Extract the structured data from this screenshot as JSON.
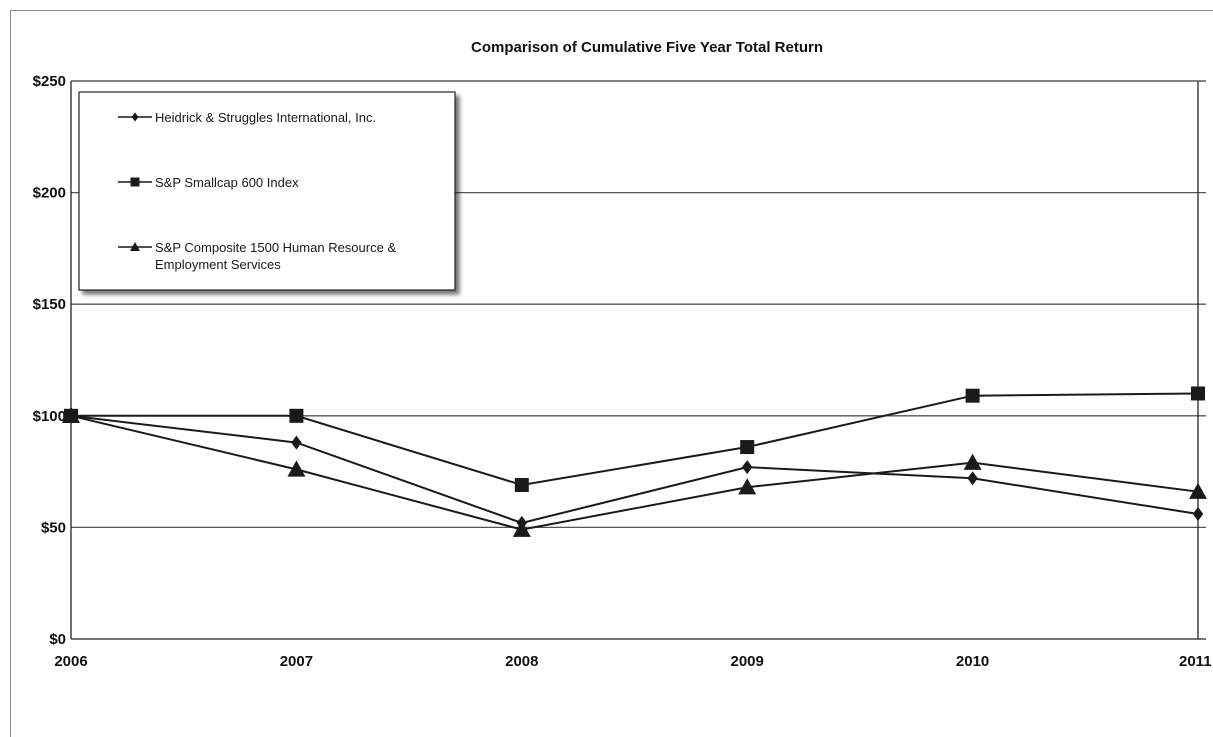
{
  "chart_data": {
    "type": "line",
    "title": "Comparison of Cumulative Five Year Total Return",
    "xlabel": "",
    "ylabel": "",
    "categories": [
      "2006",
      "2007",
      "2008",
      "2009",
      "2010",
      "2011"
    ],
    "y_tick_labels": [
      "$0",
      "$50",
      "$100",
      "$150",
      "$200",
      "$250"
    ],
    "y_ticks": [
      0,
      50,
      100,
      150,
      200,
      250
    ],
    "ylim": [
      0,
      250
    ],
    "grid": true,
    "legend_position": "top-left",
    "series": [
      {
        "name": "Heidrick & Struggles International, Inc.",
        "marker": "diamond",
        "values": [
          100,
          88,
          52,
          77,
          72,
          56
        ]
      },
      {
        "name": "S&P Smallcap 600 Index",
        "marker": "square",
        "values": [
          100,
          100,
          69,
          86,
          109,
          110
        ]
      },
      {
        "name": "S&P Composite 1500 Human Resource & Employment Services",
        "name_lines": [
          "S&P Composite 1500 Human Resource &",
          "Employment Services"
        ],
        "marker": "triangle",
        "values": [
          100,
          76,
          49,
          68,
          79,
          66
        ]
      }
    ],
    "colors": {
      "line": "#1a1a1a",
      "grid": "#555555",
      "frame": "#8a8a8a"
    }
  }
}
